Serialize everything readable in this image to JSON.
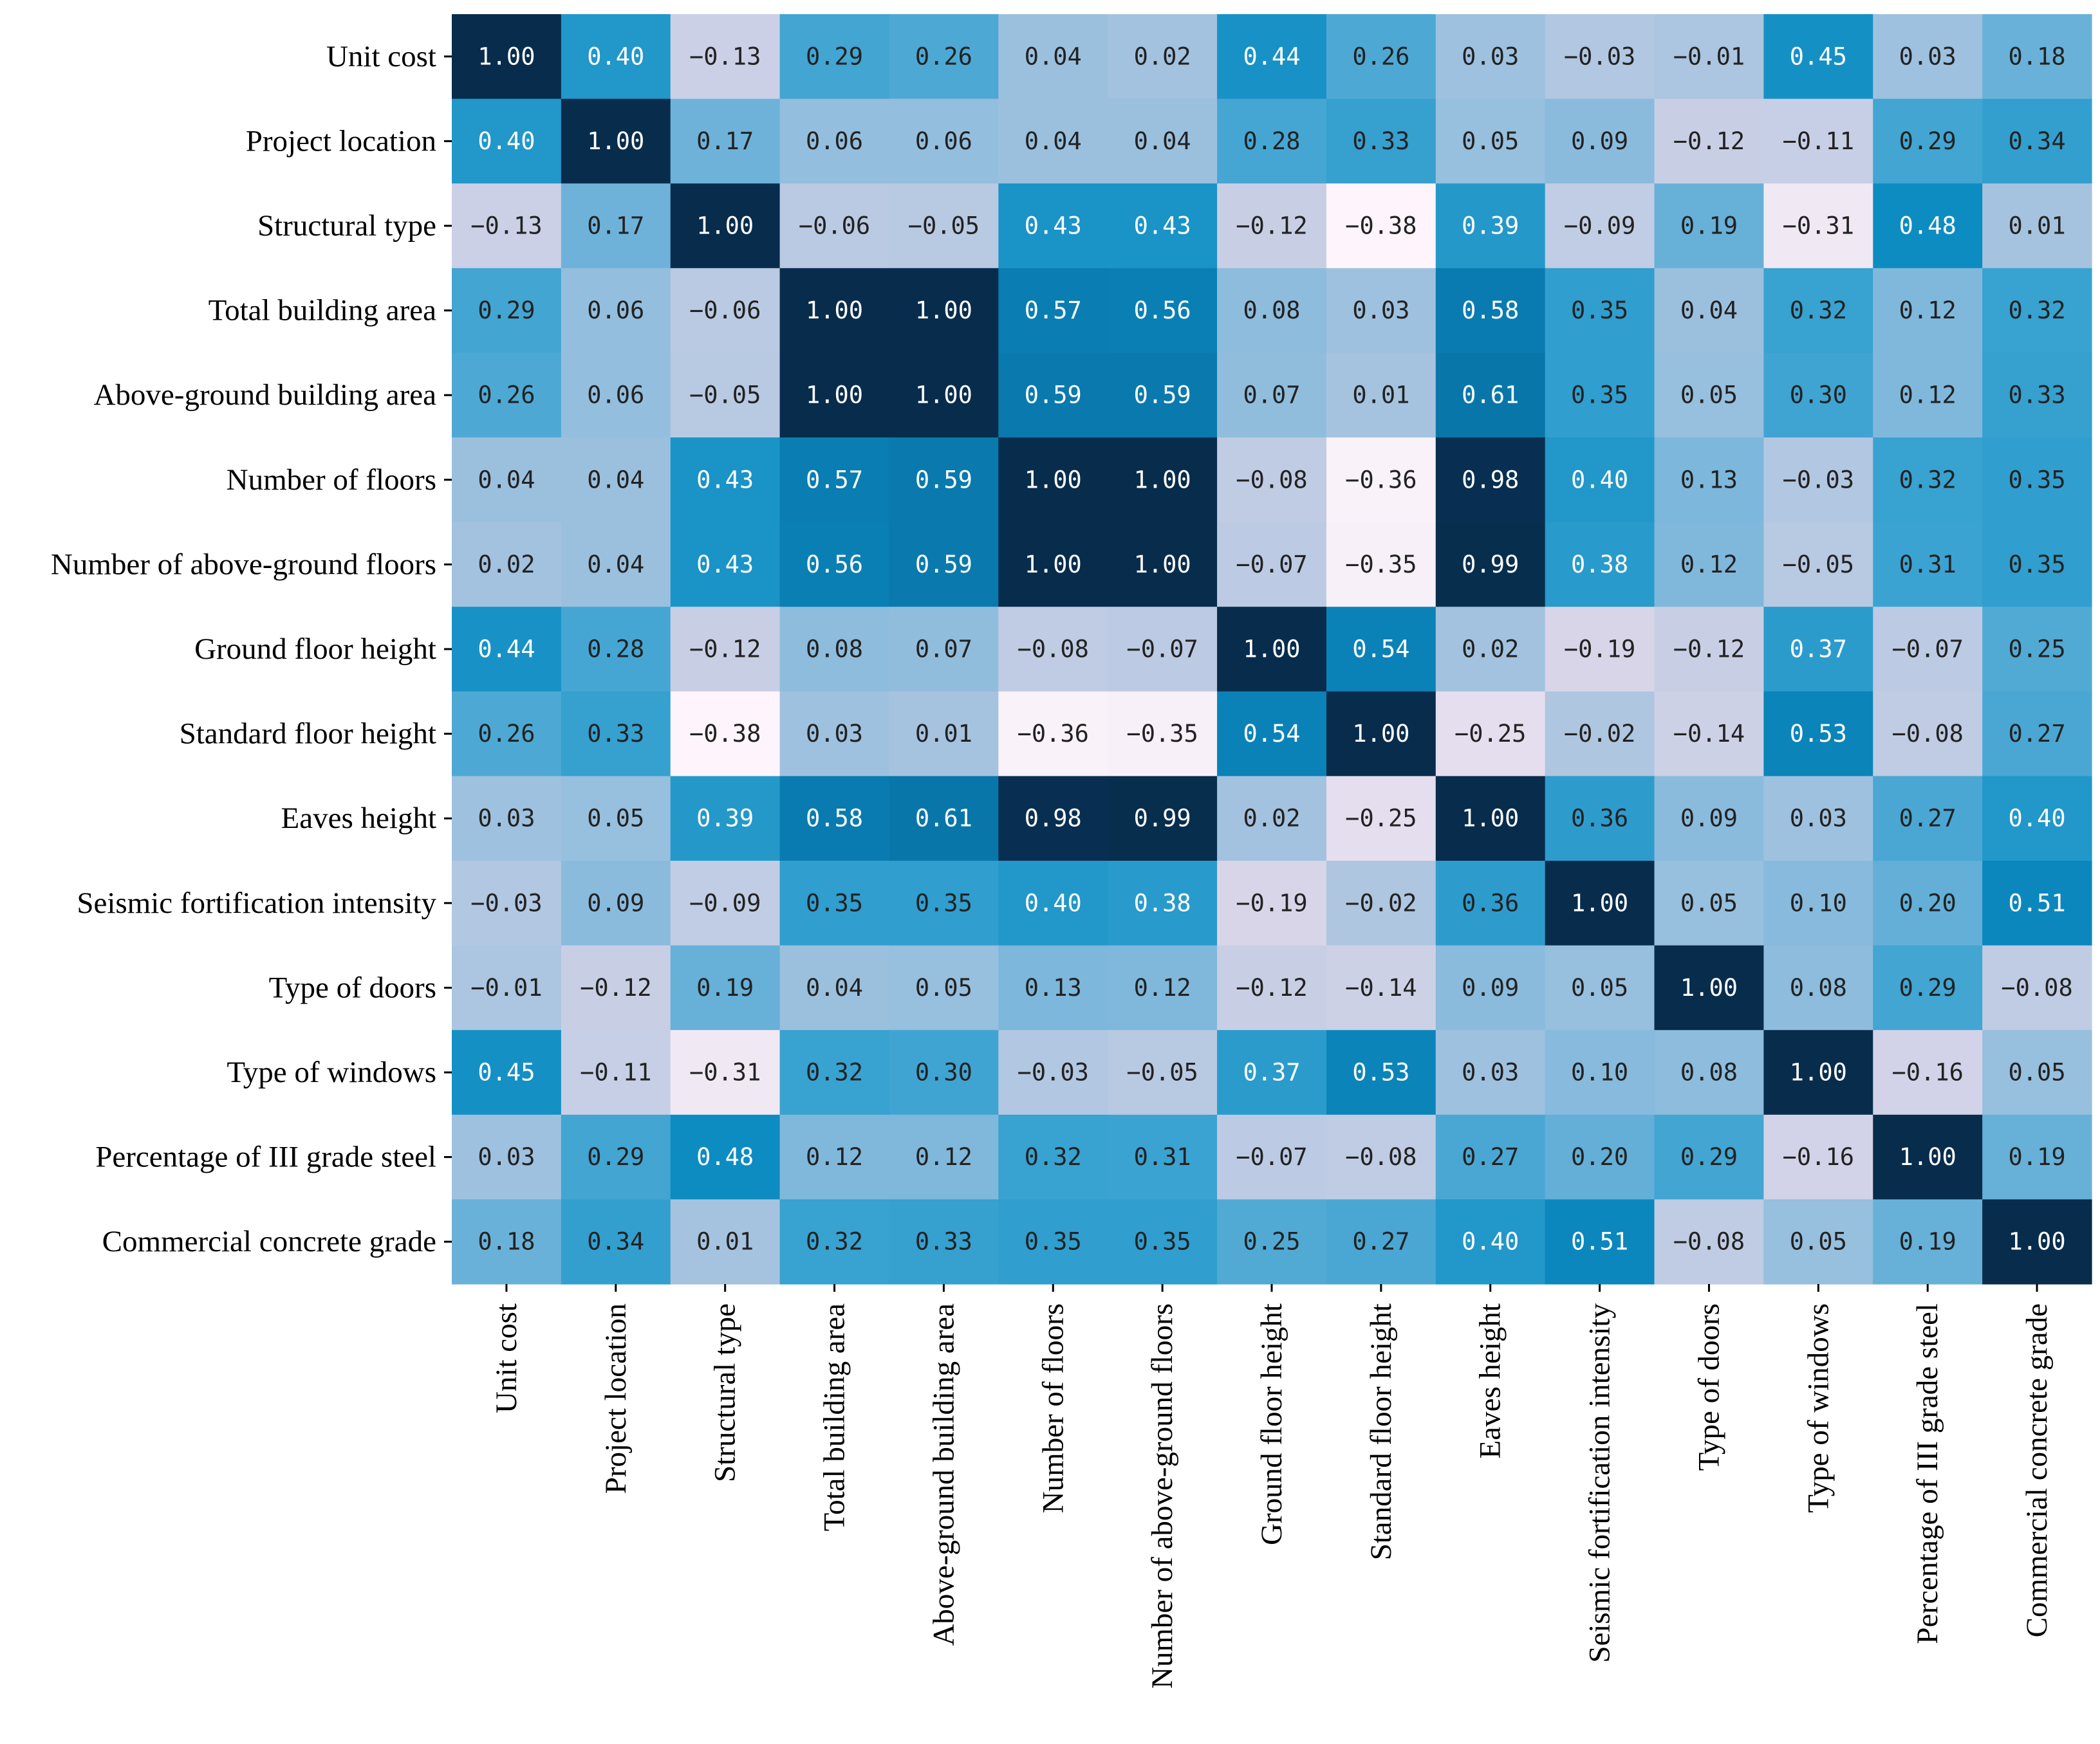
{
  "chart_data": {
    "type": "heatmap",
    "title": "",
    "xlabel": "",
    "ylabel": "",
    "value_range": [
      -0.38,
      1.0
    ],
    "colormap": [
      "#fdf5fb",
      "#ddd7ea",
      "#b4c8e1",
      "#7ab6db",
      "#3ba3d1",
      "#0c8cc2",
      "#086ea2",
      "#0a4a73",
      "#082c4c"
    ],
    "dark_text_threshold": 0.365,
    "light_text_color": "#ffffff",
    "dark_text_color": "#222222",
    "variables": [
      "Unit cost",
      "Project location",
      "Structural type",
      "Total building area",
      "Above-ground building area",
      "Number of floors",
      "Number of above-ground floors",
      "Ground floor height",
      "Standard floor height",
      "Eaves height",
      "Seismic fortification intensity",
      "Type of doors",
      "Type of windows",
      "Percentage of III grade steel",
      "Commercial concrete grade"
    ],
    "matrix": [
      [
        1.0,
        0.4,
        -0.13,
        0.29,
        0.26,
        0.04,
        0.02,
        0.44,
        0.26,
        0.03,
        -0.03,
        -0.01,
        0.45,
        0.03,
        0.18
      ],
      [
        0.4,
        1.0,
        0.17,
        0.06,
        0.06,
        0.04,
        0.04,
        0.28,
        0.33,
        0.05,
        0.09,
        -0.12,
        -0.11,
        0.29,
        0.34
      ],
      [
        -0.13,
        0.17,
        1.0,
        -0.06,
        -0.05,
        0.43,
        0.43,
        -0.12,
        -0.38,
        0.39,
        -0.09,
        0.19,
        -0.31,
        0.48,
        0.01
      ],
      [
        0.29,
        0.06,
        -0.06,
        1.0,
        1.0,
        0.57,
        0.56,
        0.08,
        0.03,
        0.58,
        0.35,
        0.04,
        0.32,
        0.12,
        0.32
      ],
      [
        0.26,
        0.06,
        -0.05,
        1.0,
        1.0,
        0.59,
        0.59,
        0.07,
        0.01,
        0.61,
        0.35,
        0.05,
        0.3,
        0.12,
        0.33
      ],
      [
        0.04,
        0.04,
        0.43,
        0.57,
        0.59,
        1.0,
        1.0,
        -0.08,
        -0.36,
        0.98,
        0.4,
        0.13,
        -0.03,
        0.32,
        0.35
      ],
      [
        0.02,
        0.04,
        0.43,
        0.56,
        0.59,
        1.0,
        1.0,
        -0.07,
        -0.35,
        0.99,
        0.38,
        0.12,
        -0.05,
        0.31,
        0.35
      ],
      [
        0.44,
        0.28,
        -0.12,
        0.08,
        0.07,
        -0.08,
        -0.07,
        1.0,
        0.54,
        0.02,
        -0.19,
        -0.12,
        0.37,
        -0.07,
        0.25
      ],
      [
        0.26,
        0.33,
        -0.38,
        0.03,
        0.01,
        -0.36,
        -0.35,
        0.54,
        1.0,
        -0.25,
        -0.02,
        -0.14,
        0.53,
        -0.08,
        0.27
      ],
      [
        0.03,
        0.05,
        0.39,
        0.58,
        0.61,
        0.98,
        0.99,
        0.02,
        -0.25,
        1.0,
        0.36,
        0.09,
        0.03,
        0.27,
        0.4
      ],
      [
        -0.03,
        0.09,
        -0.09,
        0.35,
        0.35,
        0.4,
        0.38,
        -0.19,
        -0.02,
        0.36,
        1.0,
        0.05,
        0.1,
        0.2,
        0.51
      ],
      [
        -0.01,
        -0.12,
        0.19,
        0.04,
        0.05,
        0.13,
        0.12,
        -0.12,
        -0.14,
        0.09,
        0.05,
        1.0,
        0.08,
        0.29,
        -0.08
      ],
      [
        0.45,
        -0.11,
        -0.31,
        0.32,
        0.3,
        -0.03,
        -0.05,
        0.37,
        0.53,
        0.03,
        0.1,
        0.08,
        1.0,
        -0.16,
        0.05
      ],
      [
        0.03,
        0.29,
        0.48,
        0.12,
        0.12,
        0.32,
        0.31,
        -0.07,
        -0.08,
        0.27,
        0.2,
        0.29,
        -0.16,
        1.0,
        0.19
      ],
      [
        0.18,
        0.34,
        0.01,
        0.32,
        0.33,
        0.35,
        0.35,
        0.25,
        0.27,
        0.4,
        0.51,
        -0.08,
        0.05,
        0.19,
        1.0
      ]
    ]
  }
}
